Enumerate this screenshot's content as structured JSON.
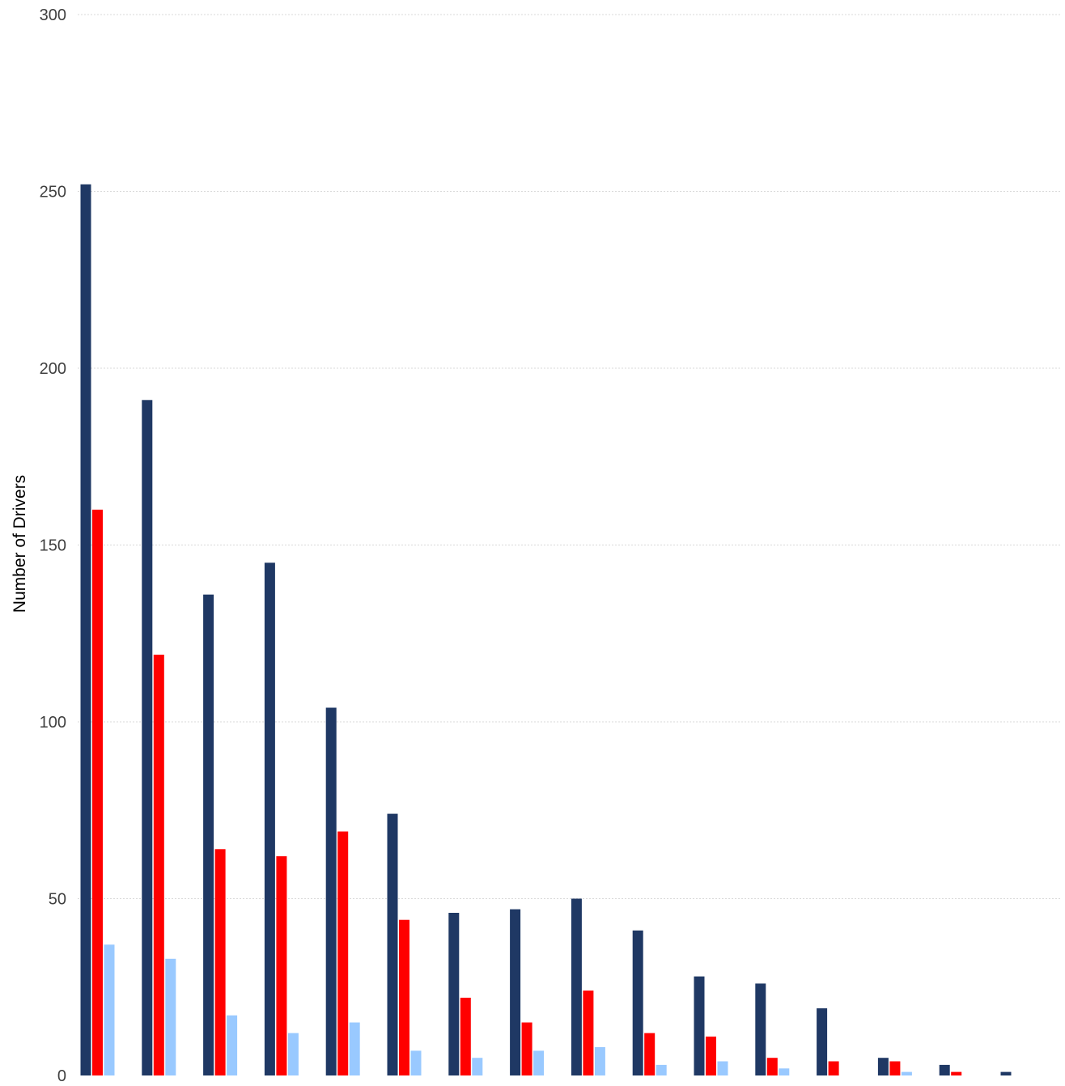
{
  "chart_data": {
    "type": "bar",
    "title": "",
    "xlabel": "",
    "ylabel": "Number of Drivers",
    "ylim": [
      0,
      300
    ],
    "yticks": [
      0,
      50,
      100,
      150,
      200,
      250,
      300
    ],
    "grid": true,
    "legend": "none",
    "categories": [
      "",
      "",
      "",
      "",
      "",
      "",
      "",
      "",
      "",
      "",
      "",
      "",
      "",
      "",
      "",
      ""
    ],
    "series": [
      {
        "color": "#1f3864",
        "values": [
          252,
          191,
          136,
          145,
          104,
          74,
          46,
          47,
          50,
          41,
          28,
          26,
          19,
          5,
          3,
          1
        ]
      },
      {
        "color": "#ff0000",
        "values": [
          160,
          119,
          64,
          62,
          69,
          44,
          22,
          15,
          24,
          12,
          11,
          5,
          4,
          4,
          1,
          0
        ]
      },
      {
        "color": "#99c9ff",
        "values": [
          37,
          33,
          17,
          12,
          15,
          7,
          5,
          7,
          8,
          3,
          4,
          2,
          0,
          1,
          0,
          0
        ]
      }
    ]
  }
}
